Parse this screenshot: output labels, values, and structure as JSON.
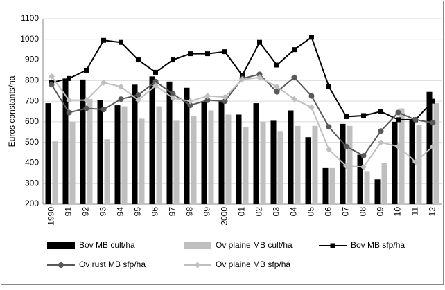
{
  "chart_data": {
    "type": "bar",
    "y_label": "Euros constants/ha",
    "categories": [
      "1990",
      "91",
      "92",
      "93",
      "94",
      "95",
      "96",
      "97",
      "98",
      "99",
      "2000",
      "01",
      "02",
      "03",
      "04",
      "05",
      "06",
      "07",
      "08",
      "09",
      "10",
      "11",
      "12"
    ],
    "ylim": [
      200,
      1100
    ],
    "yticks": [
      200,
      300,
      400,
      500,
      600,
      700,
      800,
      900,
      1000,
      1100
    ],
    "grid": true,
    "legend": "bottom",
    "series": [
      {
        "name": "Bov MB cult/ha",
        "type": "bar",
        "color": "#000000",
        "values": [
          690,
          810,
          805,
          705,
          680,
          780,
          820,
          795,
          765,
          700,
          700,
          635,
          690,
          605,
          655,
          525,
          375,
          590,
          440,
          320,
          600,
          610,
          745
        ]
      },
      {
        "name": "Ov plaine MB cult/ha",
        "type": "bar",
        "color": "#bfbfbf",
        "values": [
          505,
          600,
          710,
          515,
          675,
          615,
          675,
          605,
          630,
          655,
          635,
          575,
          600,
          555,
          580,
          580,
          375,
          580,
          360,
          400,
          665,
          585,
          690
        ]
      },
      {
        "name": "Bov MB sfp/ha",
        "type": "line",
        "marker": "square",
        "color": "#000000",
        "values": [
          790,
          810,
          850,
          995,
          985,
          900,
          840,
          900,
          930,
          930,
          940,
          825,
          985,
          875,
          950,
          1010,
          770,
          625,
          630,
          650,
          610,
          610,
          700
        ]
      },
      {
        "name": "Ov rust MB sfp/ha",
        "type": "line",
        "marker": "circle",
        "color": "#595959",
        "values": [
          780,
          645,
          665,
          660,
          710,
          730,
          795,
          735,
          680,
          705,
          700,
          810,
          830,
          745,
          815,
          725,
          575,
          480,
          435,
          555,
          645,
          610,
          595
        ]
      },
      {
        "name": "Ov plaine MB sfp/ha",
        "type": "line",
        "marker": "diamond",
        "color": "#bfbfbf",
        "values": [
          820,
          705,
          705,
          790,
          770,
          705,
          775,
          715,
          700,
          725,
          720,
          805,
          815,
          770,
          710,
          670,
          465,
          385,
          380,
          500,
          480,
          405,
          480
        ]
      }
    ]
  }
}
